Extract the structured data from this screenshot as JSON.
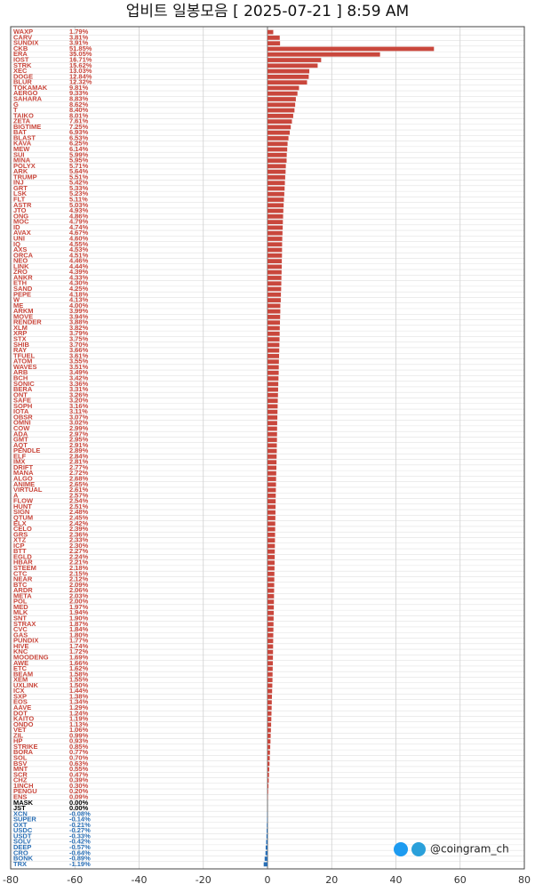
{
  "chart_data": {
    "type": "bar",
    "orientation": "horizontal",
    "title": "업비트 일봉모음 [ 2025-07-21 ]  8:59 AM",
    "watermark": "@coingram_ch",
    "categories": [
      "WAXP",
      "CARV",
      "SUNDIX",
      "CKB",
      "ERA",
      "IOST",
      "STRK",
      "XEC",
      "DOGE",
      "BLUR",
      "TOKAMAK",
      "AERGO",
      "SAHARA",
      "G",
      "T",
      "TAIKO",
      "ZETA",
      "BIGTIME",
      "BAT",
      "BLAST",
      "KAVA",
      "MEW",
      "SUI",
      "MINA",
      "POLYX",
      "ARK",
      "TRUMP",
      "INJ",
      "GRT",
      "LSK",
      "FLT",
      "ASTR",
      "JTO",
      "ONG",
      "MOC",
      "ID",
      "AVAX",
      "UNI",
      "IQ",
      "AXS",
      "ORCA",
      "NEO",
      "LINK",
      "ZRO",
      "ANKR",
      "ETH",
      "SAND",
      "PEPE",
      "W",
      "ME",
      "ARKM",
      "MOVE",
      "RENDER",
      "XLM",
      "XRP",
      "STX",
      "SHIB",
      "RAY",
      "TFUEL",
      "ATOM",
      "WAVES",
      "ARB",
      "BCH",
      "SONIC",
      "BERA",
      "ONT",
      "SAFE",
      "SOPH",
      "IOTA",
      "OBSR",
      "OMNI",
      "COW",
      "ADA",
      "GMT",
      "AQT",
      "PENDLE",
      "ELF",
      "IMX",
      "DRIFT",
      "MANA",
      "ALGO",
      "ANIME",
      "VIRTUAL",
      "A",
      "FLOW",
      "HUNT",
      "SIGN",
      "QTUM",
      "ELX",
      "CELO",
      "GRS",
      "XTZ",
      "ICP",
      "BTT",
      "EGLD",
      "HBAR",
      "STEEM",
      "CTC",
      "NEAR",
      "BTC",
      "ARDR",
      "META",
      "POL",
      "MED",
      "MLK",
      "SNT",
      "STRAX",
      "CVC",
      "GAS",
      "PUNDIX",
      "HIVE",
      "KNC",
      "MOODENG",
      "AWE",
      "ETC",
      "BEAM",
      "XEM",
      "UXLINK",
      "ICX",
      "SXP",
      "EOS",
      "AAVE",
      "DOT",
      "KAITO",
      "ONDO",
      "VET",
      "ZIL",
      "HP",
      "STRIKE",
      "BORA",
      "SOL",
      "BSV",
      "MNT",
      "SCR",
      "CHZ",
      "1INCH",
      "PENGU",
      "ENS",
      "MASK",
      "JST",
      "XCN",
      "SUPER",
      "OXT",
      "USDC",
      "USDT",
      "SOLV",
      "DEEP",
      "CRO",
      "BONK",
      "TRX"
    ],
    "values": [
      1.79,
      3.81,
      3.91,
      51.85,
      35.05,
      16.71,
      15.62,
      13.03,
      12.84,
      12.32,
      9.81,
      9.33,
      8.83,
      8.62,
      8.4,
      8.01,
      7.61,
      7.25,
      6.93,
      6.53,
      6.25,
      6.14,
      5.99,
      5.95,
      5.71,
      5.64,
      5.51,
      5.42,
      5.33,
      5.23,
      5.11,
      5.03,
      4.93,
      4.86,
      4.79,
      4.74,
      4.67,
      4.6,
      4.55,
      4.53,
      4.51,
      4.46,
      4.44,
      4.39,
      4.33,
      4.3,
      4.25,
      4.18,
      4.13,
      4.0,
      3.99,
      3.94,
      3.88,
      3.82,
      3.79,
      3.75,
      3.7,
      3.66,
      3.61,
      3.55,
      3.51,
      3.49,
      3.42,
      3.36,
      3.31,
      3.26,
      3.2,
      3.16,
      3.11,
      3.07,
      3.02,
      2.99,
      2.97,
      2.95,
      2.91,
      2.89,
      2.84,
      2.81,
      2.77,
      2.72,
      2.68,
      2.65,
      2.61,
      2.57,
      2.54,
      2.51,
      2.48,
      2.45,
      2.42,
      2.39,
      2.36,
      2.33,
      2.3,
      2.27,
      2.24,
      2.21,
      2.18,
      2.15,
      2.12,
      2.09,
      2.06,
      2.03,
      2.0,
      1.97,
      1.94,
      1.9,
      1.87,
      1.84,
      1.8,
      1.77,
      1.74,
      1.72,
      1.69,
      1.66,
      1.62,
      1.58,
      1.55,
      1.5,
      1.44,
      1.38,
      1.34,
      1.29,
      1.24,
      1.19,
      1.13,
      1.06,
      0.99,
      0.93,
      0.85,
      0.77,
      0.7,
      0.63,
      0.55,
      0.47,
      0.39,
      0.3,
      0.2,
      0.09,
      0,
      0,
      -0.08,
      -0.14,
      -0.21,
      -0.27,
      -0.33,
      -0.42,
      -0.57,
      -0.64,
      -0.89,
      -1.19
    ],
    "value_labels": [
      "1.79%",
      "3.81%",
      "3.91%",
      "51.85%",
      "35.05%",
      "16.71%",
      "15.62%",
      "13.03%",
      "12.84%",
      "12.32%",
      "9.81%",
      "9.33%",
      "8.83%",
      "8.62%",
      "8.40%",
      "8.01%",
      "7.61%",
      "7.25%",
      "6.93%",
      "6.53%",
      "6.25%",
      "6.14%",
      "5.99%",
      "5.95%",
      "5.71%",
      "5.64%",
      "5.51%",
      "5.42%",
      "5.33%",
      "5.23%",
      "5.11%",
      "5.03%",
      "4.93%",
      "4.86%",
      "4.79%",
      "4.74%",
      "4.67%",
      "4.60%",
      "4.55%",
      "4.53%",
      "4.51%",
      "4.46%",
      "4.44%",
      "4.39%",
      "4.33%",
      "4.30%",
      "4.25%",
      "4.18%",
      "4.13%",
      "4.00%",
      "3.99%",
      "3.94%",
      "3.88%",
      "3.82%",
      "3.79%",
      "3.75%",
      "3.70%",
      "3.66%",
      "3.61%",
      "3.55%",
      "3.51%",
      "3.49%",
      "3.42%",
      "3.36%",
      "3.31%",
      "3.26%",
      "3.20%",
      "3.16%",
      "3.11%",
      "3.07%",
      "3.02%",
      "2.99%",
      "2.97%",
      "2.95%",
      "2.91%",
      "2.89%",
      "2.84%",
      "2.81%",
      "2.77%",
      "2.72%",
      "2.68%",
      "2.65%",
      "2.61%",
      "2.57%",
      "2.54%",
      "2.51%",
      "2.48%",
      "2.45%",
      "2.42%",
      "2.39%",
      "2.36%",
      "2.33%",
      "2.30%",
      "2.27%",
      "2.24%",
      "2.21%",
      "2.18%",
      "2.15%",
      "2.12%",
      "2.09%",
      "2.06%",
      "2.03%",
      "2.00%",
      "1.97%",
      "1.94%",
      "1.90%",
      "1.87%",
      "1.84%",
      "1.80%",
      "1.77%",
      "1.74%",
      "1.72%",
      "1.69%",
      "1.66%",
      "1.62%",
      "1.58%",
      "1.55%",
      "1.50%",
      "1.44%",
      "1.38%",
      "1.34%",
      "1.29%",
      "1.24%",
      "1.19%",
      "1.13%",
      "1.06%",
      "0.99%",
      "0.93%",
      "0.85%",
      "0.77%",
      "0.70%",
      "0.63%",
      "0.55%",
      "0.47%",
      "0.39%",
      "0.30%",
      "0.20%",
      "0.09%",
      "0.00%",
      "0.00%",
      "-0.08%",
      "-0.14%",
      "-0.21%",
      "-0.27%",
      "-0.33%",
      "-0.42%",
      "-0.57%",
      "-0.64%",
      "-0.89%",
      "-1.19%"
    ],
    "colors": {
      "positive": "#c9473c",
      "negative": "#2a6fb5",
      "zero": "#000000"
    },
    "xlim": [
      -80,
      80
    ],
    "xticks": [
      -80,
      -60,
      -40,
      -20,
      0,
      20,
      40,
      60,
      80
    ],
    "grid": true
  }
}
